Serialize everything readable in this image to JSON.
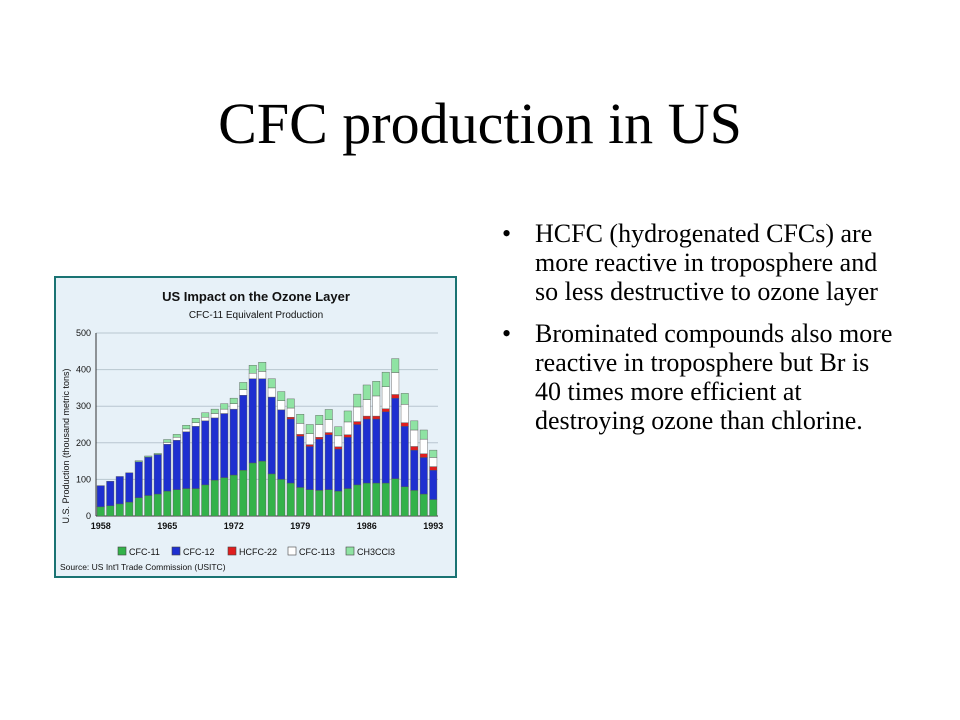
{
  "slide": {
    "title": "CFC production in US",
    "bullets": [
      "HCFC (hydrogenated CFCs) are more reactive in troposphere and so less destructive to ozone layer",
      "Brominated compounds also more reactive in troposphere but Br is 40 times more efficient at destroying ozone than chlorine."
    ],
    "bullet_glyph": "•"
  },
  "chart_data": {
    "type": "bar",
    "stacked": true,
    "title": "US Impact on the Ozone Layer",
    "subtitle": "CFC-11 Equivalent Production",
    "ylabel": "U.S. Production (thousand metric tons)",
    "xlabel": "",
    "ylim": [
      0,
      500
    ],
    "yticks": [
      0,
      100,
      200,
      300,
      400,
      500
    ],
    "x_tick_labels": [
      "1958",
      "1965",
      "1972",
      "1979",
      "1986",
      "1993"
    ],
    "source": "Source: US Int'l Trade Commission (USITC)",
    "grid": true,
    "legend_position": "bottom",
    "categories": [
      1958,
      1959,
      1960,
      1961,
      1962,
      1963,
      1964,
      1965,
      1966,
      1967,
      1968,
      1969,
      1970,
      1971,
      1972,
      1973,
      1974,
      1975,
      1976,
      1977,
      1978,
      1979,
      1980,
      1981,
      1982,
      1983,
      1984,
      1985,
      1986,
      1987,
      1988,
      1989,
      1990,
      1991,
      1992,
      1993
    ],
    "series": [
      {
        "name": "CFC-11",
        "color": "#33b24a",
        "values": [
          25,
          28,
          33,
          38,
          50,
          56,
          60,
          68,
          72,
          75,
          75,
          85,
          98,
          105,
          112,
          125,
          145,
          150,
          115,
          100,
          90,
          78,
          72,
          70,
          72,
          68,
          75,
          85,
          90,
          90,
          90,
          102,
          80,
          70,
          60,
          45
        ]
      },
      {
        "name": "CFC-12",
        "color": "#1e2fd0",
        "values": [
          58,
          67,
          75,
          80,
          98,
          105,
          108,
          128,
          135,
          155,
          170,
          175,
          170,
          175,
          180,
          205,
          230,
          225,
          210,
          190,
          175,
          140,
          118,
          140,
          150,
          115,
          140,
          165,
          175,
          175,
          195,
          220,
          165,
          110,
          100,
          80
        ]
      },
      {
        "name": "HCFC-22",
        "color": "#e01e1e",
        "values": [
          0,
          0,
          0,
          0,
          0,
          0,
          0,
          0,
          0,
          0,
          0,
          0,
          0,
          0,
          0,
          0,
          0,
          0,
          0,
          0,
          5,
          5,
          5,
          5,
          6,
          6,
          7,
          8,
          8,
          8,
          8,
          10,
          10,
          10,
          10,
          10
        ]
      },
      {
        "name": "CFC-113",
        "color": "#ffffff",
        "values": [
          0,
          0,
          0,
          0,
          0,
          0,
          0,
          5,
          8,
          8,
          10,
          10,
          12,
          12,
          15,
          15,
          15,
          20,
          25,
          25,
          25,
          30,
          30,
          35,
          35,
          30,
          35,
          40,
          45,
          55,
          60,
          60,
          50,
          45,
          40,
          25
        ]
      },
      {
        "name": "CH3CCl3",
        "color": "#8fe3a3",
        "values": [
          0,
          0,
          0,
          0,
          3,
          3,
          3,
          8,
          8,
          10,
          12,
          12,
          12,
          15,
          15,
          20,
          22,
          25,
          25,
          25,
          25,
          25,
          25,
          25,
          28,
          25,
          30,
          35,
          40,
          40,
          40,
          38,
          30,
          25,
          25,
          20
        ]
      }
    ]
  }
}
